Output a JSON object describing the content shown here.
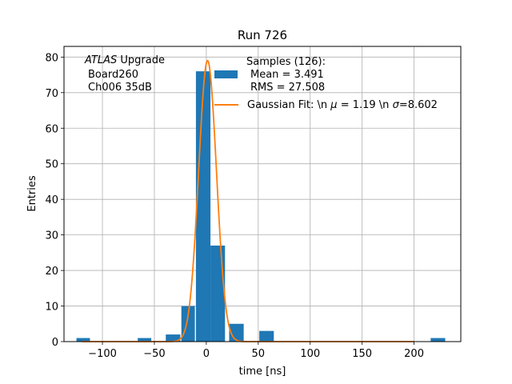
{
  "chart_data": {
    "type": "bar",
    "title": "Run 726",
    "xlabel": "time [ns]",
    "ylabel": "Entries",
    "xlim": [
      -137,
      245
    ],
    "ylim": [
      0,
      83
    ],
    "xticks": [
      -100,
      -50,
      0,
      50,
      100,
      150,
      200
    ],
    "yticks": [
      0,
      10,
      20,
      30,
      40,
      50,
      60,
      70,
      80
    ],
    "grid": true,
    "legend_placement": "upper-center",
    "annotation": {
      "line1_italic": "ATLAS",
      "line1_rest": " Upgrade",
      "line2": "Board260",
      "line3": "Ch006 35dB"
    },
    "histogram": {
      "name_lines": [
        "Samples (126):",
        "Mean = 3.491",
        "RMS = 27.508"
      ],
      "color": "#1f77b4",
      "bins": [
        {
          "x0": -125,
          "x1": -112,
          "count": 1
        },
        {
          "x0": -66,
          "x1": -53,
          "count": 1
        },
        {
          "x0": -39,
          "x1": -25,
          "count": 2
        },
        {
          "x0": -24,
          "x1": -11,
          "count": 10
        },
        {
          "x0": -10,
          "x1": 4,
          "count": 76
        },
        {
          "x0": 4,
          "x1": 18,
          "count": 27
        },
        {
          "x0": 22,
          "x1": 36,
          "count": 5
        },
        {
          "x0": 51,
          "x1": 65,
          "count": 3
        },
        {
          "x0": 216,
          "x1": 230,
          "count": 1
        }
      ]
    },
    "fit": {
      "name": "Gaussian Fit: \\n $\\mu$ = 1.19 \\n $\\sigma$=8.602",
      "label_prefix": "Gaussian Fit: \\n ",
      "label_mu": "μ",
      "label_mid": " = 1.19 \\n ",
      "label_sigma": "σ",
      "label_suffix": "=8.602",
      "color": "#ff7f0e",
      "mu": 1.19,
      "sigma": 8.602,
      "amplitude": 79,
      "x_range": [
        -120,
        200
      ]
    }
  }
}
